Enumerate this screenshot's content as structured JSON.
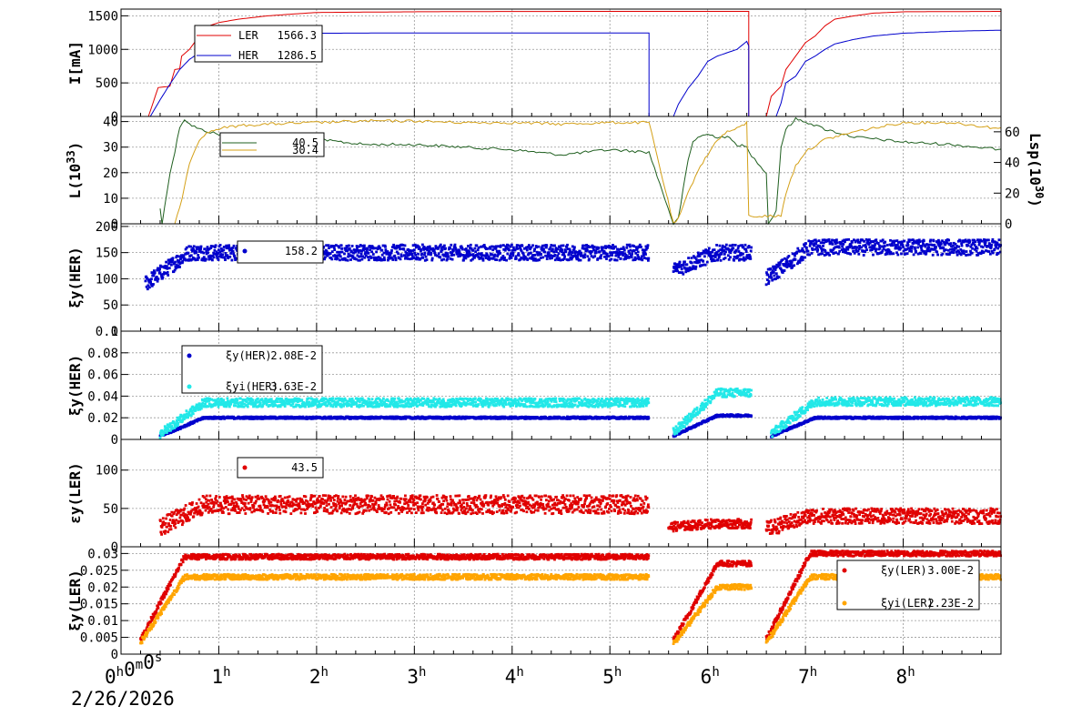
{
  "colors": {
    "ler": "#e00000",
    "her": "#0000cc",
    "lum": "#1f5f1f",
    "lsp": "#d4a017",
    "her_xyi": "#22e8e8",
    "ler_xyi": "#ffa500"
  },
  "date": "2/26/2026",
  "chart_data": [
    {
      "type": "line",
      "id": "currents",
      "ylabel": "I[mA]",
      "ylim": [
        0,
        1600
      ],
      "yticks": [
        0,
        500,
        1000,
        1500
      ],
      "legend": [
        {
          "label": "LER",
          "value": "1566.3"
        },
        {
          "label": "HER",
          "value": "1286.5"
        }
      ],
      "series": [
        {
          "name": "LER",
          "x": [
            0,
            0.28,
            0.38,
            0.5,
            0.55,
            0.6,
            0.62,
            0.7,
            0.75,
            0.8,
            0.9,
            1.0,
            1.2,
            1.5,
            2.0,
            3.0,
            4.0,
            5.0,
            6.0,
            6.42,
            6.42,
            6.6,
            6.65,
            6.75,
            6.8,
            6.9,
            7.0,
            7.1,
            7.2,
            7.3,
            7.5,
            7.7,
            8.0,
            9.0
          ],
          "y": [
            0,
            0,
            430,
            450,
            700,
            710,
            900,
            1000,
            1100,
            1200,
            1350,
            1400,
            1450,
            1500,
            1550,
            1560,
            1565,
            1566,
            1566,
            1566,
            0,
            0,
            300,
            450,
            700,
            900,
            1100,
            1200,
            1350,
            1450,
            1500,
            1540,
            1560,
            1566
          ]
        },
        {
          "name": "HER",
          "x": [
            0,
            0.3,
            0.4,
            0.5,
            0.6,
            0.7,
            0.8,
            0.9,
            1.0,
            1.2,
            1.5,
            2.0,
            3.0,
            4.0,
            5.0,
            5.4,
            5.4,
            5.65,
            5.7,
            5.8,
            5.9,
            6.0,
            6.1,
            6.2,
            6.3,
            6.4,
            6.42,
            6.42,
            6.7,
            6.75,
            6.8,
            6.9,
            7.0,
            7.1,
            7.2,
            7.3,
            7.5,
            7.7,
            8.0,
            8.5,
            9.0
          ],
          "y": [
            0,
            0,
            250,
            480,
            700,
            850,
            950,
            1050,
            1120,
            1180,
            1220,
            1240,
            1245,
            1245,
            1245,
            1245,
            0,
            0,
            180,
            420,
            600,
            820,
            900,
            950,
            1000,
            1120,
            1050,
            0,
            0,
            200,
            500,
            600,
            820,
            900,
            1000,
            1080,
            1150,
            1200,
            1240,
            1270,
            1286
          ]
        }
      ]
    },
    {
      "type": "line",
      "id": "luminosity",
      "ylabel": "L(10",
      "ylabel_sup": "33",
      "ylabel_end": ")",
      "ylim": [
        0,
        42
      ],
      "yticks": [
        0,
        10,
        20,
        30,
        40
      ],
      "ylabel_right": "Lsp(10",
      "ylabel_right_sup": "30",
      "ylabel_right_end": ")",
      "ylim_right": [
        0,
        70
      ],
      "yticks_right": [
        0,
        20,
        40,
        60
      ],
      "legend": [
        {
          "label": "",
          "value": "40.5"
        },
        {
          "label": "",
          "value": "30.4"
        }
      ],
      "series": [
        {
          "name": "L",
          "axis": "left",
          "x": [
            0.4,
            0.42,
            0.5,
            0.55,
            0.6,
            0.65,
            0.7,
            0.8,
            1.0,
            1.5,
            2.0,
            2.5,
            3.0,
            3.5,
            4.0,
            4.5,
            5.0,
            5.4,
            5.65,
            5.7,
            5.8,
            5.85,
            5.9,
            6.0,
            6.1,
            6.2,
            6.3,
            6.4,
            6.42,
            6.6,
            6.62,
            6.7,
            6.75,
            6.8,
            6.9,
            7.0,
            7.2,
            7.5,
            8.0,
            8.5,
            9.0
          ],
          "y": [
            6,
            0,
            20,
            28,
            38,
            41,
            39,
            37,
            35,
            32,
            33,
            31,
            31,
            30,
            29,
            27,
            29,
            28,
            0,
            2,
            25,
            32,
            34,
            35,
            34,
            34,
            31,
            30,
            28,
            20,
            0,
            5,
            30,
            37,
            41,
            40,
            37,
            34,
            32,
            31,
            29
          ]
        },
        {
          "name": "Lsp",
          "axis": "right",
          "x": [
            0.55,
            0.6,
            0.7,
            0.8,
            0.9,
            1.0,
            1.2,
            1.5,
            2.0,
            2.5,
            3.0,
            3.5,
            4.0,
            4.5,
            5.0,
            5.4,
            5.65,
            5.7,
            5.8,
            5.9,
            6.0,
            6.1,
            6.2,
            6.3,
            6.4,
            6.42,
            6.75,
            6.8,
            6.9,
            7.0,
            7.2,
            7.5,
            8.0,
            8.5,
            9.0
          ],
          "y": [
            0,
            10,
            40,
            55,
            60,
            62,
            64,
            65,
            66,
            67,
            67,
            66,
            66,
            65,
            66,
            66,
            0,
            3,
            20,
            35,
            45,
            55,
            60,
            62,
            66,
            5,
            5,
            20,
            38,
            47,
            55,
            60,
            66,
            66,
            62
          ]
        }
      ]
    },
    {
      "type": "scatter",
      "id": "xi-her",
      "ylabel": "ξy(HER)",
      "ylim": [
        0,
        205
      ],
      "yticks": [
        0,
        50,
        100,
        150,
        200
      ],
      "legend": [
        {
          "label": "",
          "value": "158.2"
        }
      ],
      "series": [
        {
          "name": "ξy(HER)",
          "segments": [
            [
              0.25,
              5.4,
              80,
              150,
              15
            ],
            [
              5.65,
              6.45,
              110,
              150,
              15
            ],
            [
              6.6,
              9.0,
              90,
              160,
              15
            ]
          ]
        }
      ]
    },
    {
      "type": "scatter",
      "id": "xi-her-small",
      "ylabel": "ξy(HER)",
      "ylim": [
        0,
        0.1
      ],
      "yticks": [
        0,
        0.02,
        0.04,
        0.06,
        0.08,
        0.1
      ],
      "ytick_labels": [
        "0",
        "0.02",
        "0.04",
        "0.06",
        "0.08",
        "0.1"
      ],
      "legend": [
        {
          "label": "ξy(HER)",
          "value": "2.08E-2"
        },
        {
          "label": "ξyi(HER)",
          "value": "3.63E-2"
        }
      ],
      "series": [
        {
          "name": "ξy(HER)",
          "segments": [
            [
              0.4,
              5.4,
              0.0,
              0.02,
              0.001
            ],
            [
              5.65,
              6.45,
              0.0,
              0.022,
              0.001
            ],
            [
              6.65,
              9.0,
              0.0,
              0.02,
              0.001
            ]
          ]
        },
        {
          "name": "ξyi(HER)",
          "segments": [
            [
              0.4,
              5.4,
              0.0,
              0.034,
              0.004
            ],
            [
              5.65,
              6.45,
              0.0,
              0.043,
              0.004
            ],
            [
              6.65,
              9.0,
              0.0,
              0.035,
              0.004
            ]
          ]
        }
      ]
    },
    {
      "type": "scatter",
      "id": "eps-ler",
      "ylabel": "εy(LER)",
      "ylim": [
        0,
        140
      ],
      "yticks": [
        0,
        50,
        100
      ],
      "legend": [
        {
          "label": "",
          "value": "43.5"
        }
      ],
      "series": [
        {
          "name": "εy(LER)",
          "segments": [
            [
              0.4,
              5.4,
              20,
              55,
              12
            ],
            [
              5.6,
              6.45,
              25,
              30,
              6
            ],
            [
              6.6,
              9.0,
              20,
              40,
              10
            ]
          ]
        }
      ]
    },
    {
      "type": "scatter",
      "id": "xi-ler",
      "ylabel": "ξy(LER)",
      "ylim": [
        0,
        0.032
      ],
      "yticks": [
        0,
        0.005,
        0.01,
        0.015,
        0.02,
        0.025,
        0.03
      ],
      "ytick_labels": [
        "0",
        "0.005",
        "0.01",
        "0.015",
        "0.02",
        "0.025",
        "0.03"
      ],
      "legend": [
        {
          "label": "ξy(LER)",
          "value": "3.00E-2"
        },
        {
          "label": "ξyi(LER)",
          "value": "2.23E-2"
        }
      ],
      "series": [
        {
          "name": "ξy(LER)",
          "segments": [
            [
              0.2,
              5.4,
              0.0,
              0.029,
              0.0008
            ],
            [
              5.65,
              6.45,
              0.0,
              0.027,
              0.0008
            ],
            [
              6.6,
              9.0,
              0.0,
              0.03,
              0.0008
            ]
          ]
        },
        {
          "name": "ξyi(LER)",
          "segments": [
            [
              0.2,
              5.4,
              0.0,
              0.023,
              0.0008
            ],
            [
              5.65,
              6.45,
              0.0,
              0.02,
              0.0008
            ],
            [
              6.6,
              9.0,
              0.0,
              0.023,
              0.0008
            ]
          ]
        }
      ]
    }
  ],
  "xaxis": {
    "range": [
      0,
      9.0
    ],
    "labels": [
      {
        "x": 0,
        "parts": [
          [
            "0",
            "h"
          ],
          [
            "0",
            "m"
          ],
          [
            "0",
            "s"
          ]
        ]
      },
      {
        "x": 1,
        "parts": [
          [
            "1",
            "h"
          ]
        ]
      },
      {
        "x": 2,
        "parts": [
          [
            "2",
            "h"
          ]
        ]
      },
      {
        "x": 3,
        "parts": [
          [
            "3",
            "h"
          ]
        ]
      },
      {
        "x": 4,
        "parts": [
          [
            "4",
            "h"
          ]
        ]
      },
      {
        "x": 5,
        "parts": [
          [
            "5",
            "h"
          ]
        ]
      },
      {
        "x": 6,
        "parts": [
          [
            "6",
            "h"
          ]
        ]
      },
      {
        "x": 7,
        "parts": [
          [
            "7",
            "h"
          ]
        ]
      },
      {
        "x": 8,
        "parts": [
          [
            "8",
            "h"
          ]
        ]
      }
    ]
  }
}
